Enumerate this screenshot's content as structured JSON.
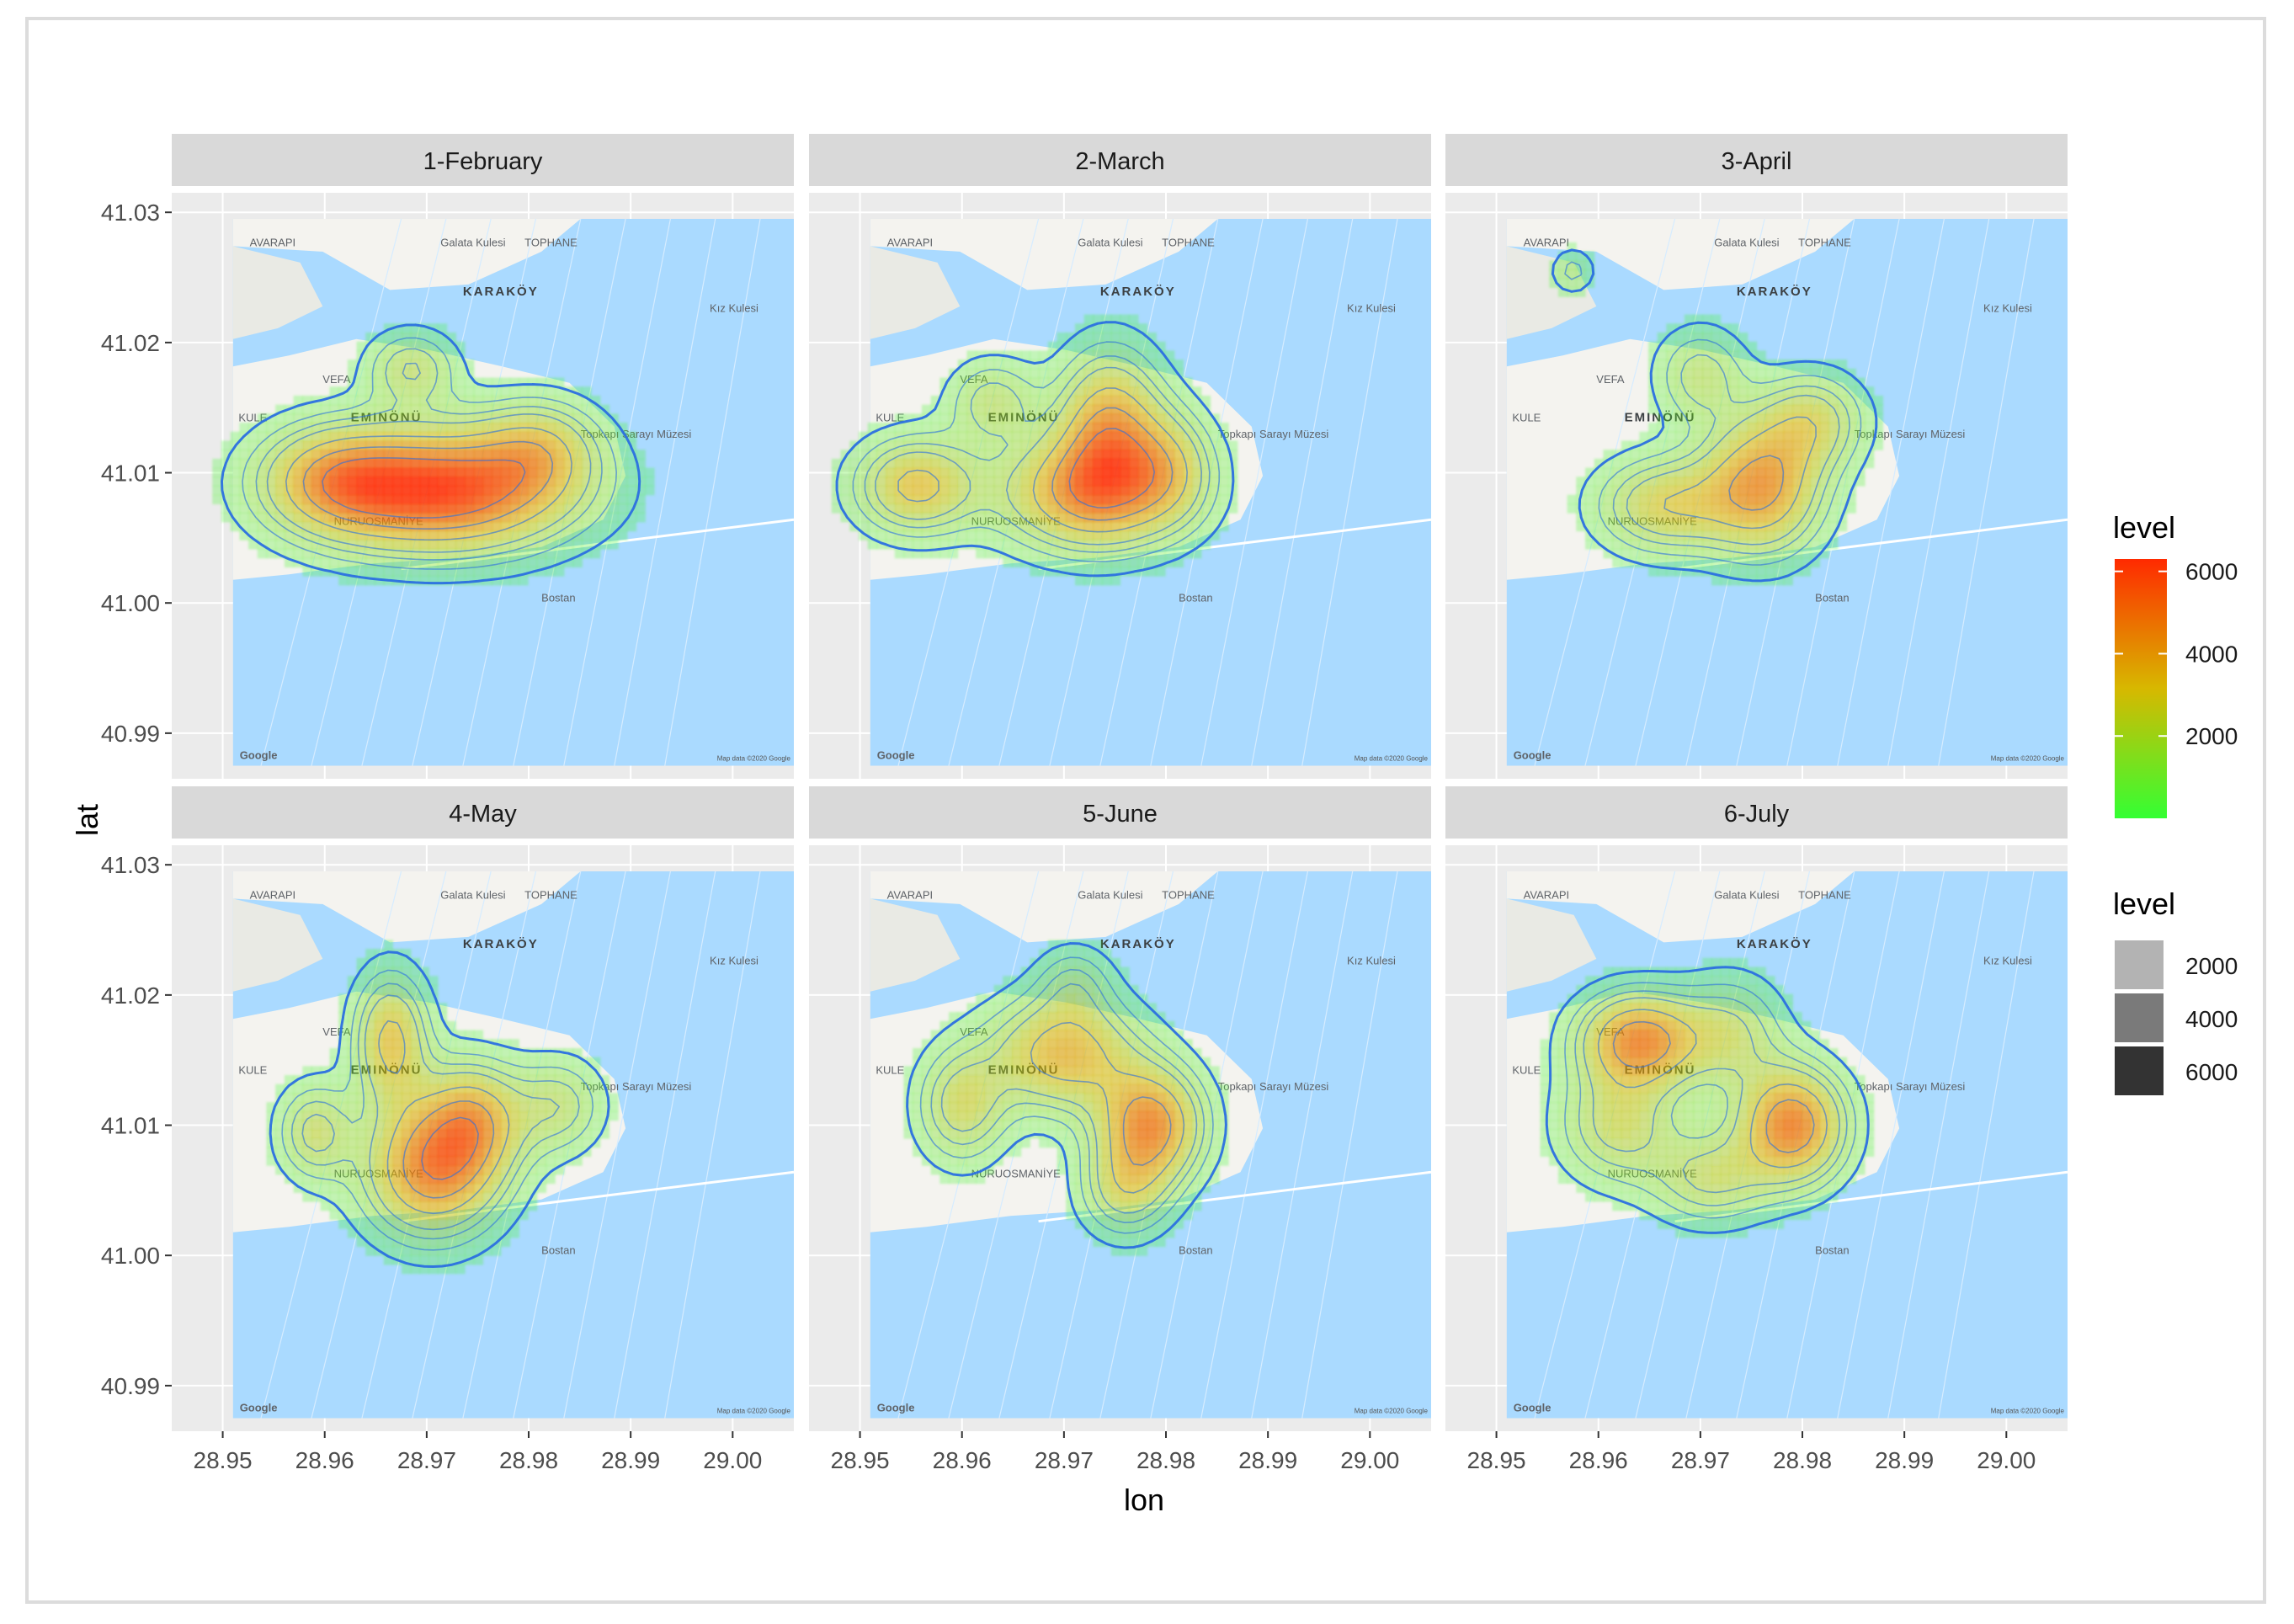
{
  "chart_data": {
    "type": "heatmap",
    "xlabel": "lon",
    "ylabel": "lat",
    "xlim": [
      28.945,
      29.006
    ],
    "ylim": [
      40.9865,
      41.0315
    ],
    "x_ticks": [
      28.95,
      28.96,
      28.97,
      28.98,
      28.99,
      29.0
    ],
    "x_tick_labels": [
      "28.95",
      "28.96",
      "28.97",
      "28.98",
      "28.99",
      "29.00"
    ],
    "y_ticks": [
      41.03,
      41.02,
      41.01,
      41.0,
      40.99
    ],
    "y_tick_labels": [
      "41.03",
      "41.02",
      "41.01",
      "41.00",
      "40.99"
    ],
    "grid": true,
    "map_extent": {
      "lon": [
        28.951,
        29.006
      ],
      "lat": [
        40.9875,
        41.0295
      ]
    },
    "map_labels": [
      "Galata Kulesi",
      "TOPHANE",
      "KARAKÖY",
      "EMINÖNÜ",
      "VEFA",
      "KULE",
      "Kız Kulesi",
      "Topkapı Sarayı Müzesi",
      "NURUOSMANİYE",
      "Bostan",
      "Google",
      "Map data ©2020 Google",
      "AVARAPI"
    ],
    "panels": [
      {
        "title": "1-February",
        "hotspots": [
          {
            "lon": 28.9715,
            "lat": 41.0087,
            "peak": 6000,
            "sx": 0.0085,
            "sy": 0.0032
          },
          {
            "lon": 28.9608,
            "lat": 41.0095,
            "peak": 2800,
            "sx": 0.005,
            "sy": 0.0028
          },
          {
            "lon": 28.9685,
            "lat": 41.018,
            "peak": 2000,
            "sx": 0.003,
            "sy": 0.002
          },
          {
            "lon": 28.981,
            "lat": 41.012,
            "peak": 2200,
            "sx": 0.004,
            "sy": 0.0025
          }
        ]
      },
      {
        "title": "2-March",
        "hotspots": [
          {
            "lon": 28.9725,
            "lat": 41.0085,
            "peak": 4200,
            "sx": 0.006,
            "sy": 0.003
          },
          {
            "lon": 28.9745,
            "lat": 41.0135,
            "peak": 3800,
            "sx": 0.0035,
            "sy": 0.004
          },
          {
            "lon": 28.9555,
            "lat": 41.009,
            "peak": 3300,
            "sx": 0.004,
            "sy": 0.0025
          },
          {
            "lon": 28.963,
            "lat": 41.0155,
            "peak": 1800,
            "sx": 0.003,
            "sy": 0.0022
          },
          {
            "lon": 28.9805,
            "lat": 41.0105,
            "peak": 2000,
            "sx": 0.003,
            "sy": 0.003
          }
        ]
      },
      {
        "title": "3-April",
        "hotspots": [
          {
            "lon": 28.976,
            "lat": 41.009,
            "peak": 4200,
            "sx": 0.004,
            "sy": 0.0035
          },
          {
            "lon": 28.9665,
            "lat": 41.0075,
            "peak": 2800,
            "sx": 0.0045,
            "sy": 0.0025
          },
          {
            "lon": 28.981,
            "lat": 41.014,
            "peak": 2300,
            "sx": 0.0035,
            "sy": 0.0025
          },
          {
            "lon": 28.97,
            "lat": 41.0175,
            "peak": 1800,
            "sx": 0.003,
            "sy": 0.0025
          },
          {
            "lon": 28.9575,
            "lat": 41.0255,
            "peak": 1200,
            "sx": 0.0015,
            "sy": 0.0012
          }
        ]
      },
      {
        "title": "4-May",
        "hotspots": [
          {
            "lon": 28.9705,
            "lat": 41.0065,
            "peak": 4500,
            "sx": 0.0045,
            "sy": 0.0035
          },
          {
            "lon": 28.9665,
            "lat": 41.0165,
            "peak": 3300,
            "sx": 0.0025,
            "sy": 0.0035
          },
          {
            "lon": 28.9745,
            "lat": 41.0105,
            "peak": 3300,
            "sx": 0.0035,
            "sy": 0.003
          },
          {
            "lon": 28.959,
            "lat": 41.0095,
            "peak": 2200,
            "sx": 0.0025,
            "sy": 0.0025
          },
          {
            "lon": 28.983,
            "lat": 41.0115,
            "peak": 1800,
            "sx": 0.003,
            "sy": 0.0025
          }
        ]
      },
      {
        "title": "5-June",
        "hotspots": [
          {
            "lon": 28.9785,
            "lat": 41.01,
            "peak": 4500,
            "sx": 0.0035,
            "sy": 0.003
          },
          {
            "lon": 28.97,
            "lat": 41.0155,
            "peak": 3600,
            "sx": 0.005,
            "sy": 0.003
          },
          {
            "lon": 28.96,
            "lat": 41.0115,
            "peak": 2400,
            "sx": 0.003,
            "sy": 0.003
          },
          {
            "lon": 28.976,
            "lat": 41.005,
            "peak": 2200,
            "sx": 0.003,
            "sy": 0.0025
          },
          {
            "lon": 28.971,
            "lat": 41.021,
            "peak": 1300,
            "sx": 0.0025,
            "sy": 0.002
          }
        ]
      },
      {
        "title": "6-July",
        "hotspots": [
          {
            "lon": 28.979,
            "lat": 41.01,
            "peak": 4800,
            "sx": 0.0035,
            "sy": 0.003
          },
          {
            "lon": 28.964,
            "lat": 41.0165,
            "peak": 4600,
            "sx": 0.004,
            "sy": 0.0025
          },
          {
            "lon": 28.962,
            "lat": 41.01,
            "peak": 2300,
            "sx": 0.004,
            "sy": 0.003
          },
          {
            "lon": 28.971,
            "lat": 41.006,
            "peak": 2100,
            "sx": 0.004,
            "sy": 0.0025
          },
          {
            "lon": 28.973,
            "lat": 41.017,
            "peak": 2000,
            "sx": 0.0035,
            "sy": 0.003
          }
        ]
      }
    ],
    "contour_levels": [
      500,
      1000,
      1500,
      2000,
      3000,
      4000,
      5000
    ],
    "legend_fill": {
      "title": "level",
      "ticks": [
        2000,
        4000,
        6000
      ],
      "tick_labels": [
        "2000",
        "4000",
        "6000"
      ],
      "range": [
        0,
        6300
      ],
      "colors": [
        "#33ff33",
        "#d7b800",
        "#ff2a00"
      ]
    },
    "legend_alpha": {
      "title": "level",
      "levels": [
        2000,
        4000,
        6000
      ],
      "labels": [
        "2000",
        "4000",
        "6000"
      ],
      "colors": [
        "#b3b3b3",
        "#7a7a7a",
        "#333333"
      ]
    }
  },
  "colors": {
    "panel_bg": "#ebebeb",
    "strip_bg": "#d9d9d9",
    "grid": "#ffffff",
    "water": "#aadaff",
    "land": "#f4f3ef",
    "contour": "#2b6fe0"
  }
}
